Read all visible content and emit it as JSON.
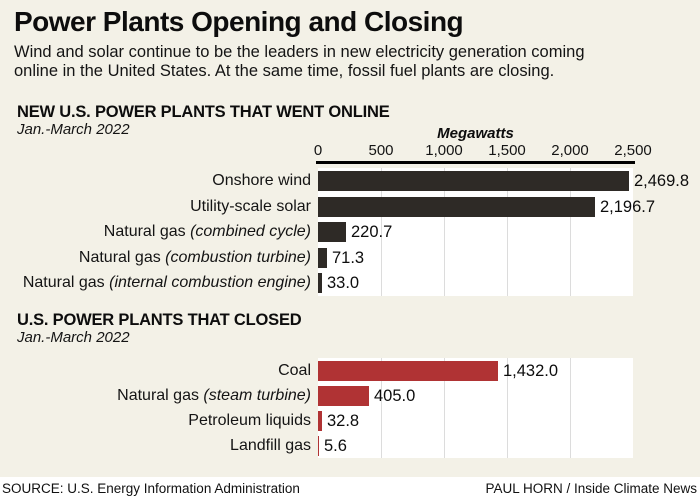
{
  "page": {
    "title": "Power Plants Opening and Closing",
    "subtitle": "Wind and solar continue to be the leaders in new electricity generation coming online in the United States. At the same time, fossil fuel plants are closing.",
    "source": "SOURCE: U.S. Energy Information Administration",
    "credit": "PAUL HORN / Inside Climate News"
  },
  "colors": {
    "background": "#f3f1e7",
    "plot_background": "#ffffff",
    "gridline": "#dcdcdc",
    "axis_line": "#000000",
    "opened_bar": "#2e2a26",
    "closed_bar": "#b03334",
    "footer_background": "#ffffff"
  },
  "chart_data": [
    {
      "type": "bar",
      "orientation": "horizontal",
      "section_title": "NEW U.S. POWER PLANTS THAT WENT ONLINE",
      "section_subtitle": "Jan.-March 2022",
      "axis_label": "Megawatts",
      "axis_ticks": [
        "0",
        "500",
        "1,000",
        "1,500",
        "2,000",
        "2,500"
      ],
      "xlim": [
        0,
        2500
      ],
      "grid": true,
      "bar_color": "#2e2a26",
      "rows": [
        {
          "label": "Onshore wind",
          "note": "",
          "value": 2469.8,
          "value_label": "2,469.8"
        },
        {
          "label": "Utility-scale solar",
          "note": "",
          "value": 2196.7,
          "value_label": "2,196.7"
        },
        {
          "label": "Natural gas",
          "note": "(combined cycle)",
          "value": 220.7,
          "value_label": "220.7"
        },
        {
          "label": "Natural gas",
          "note": "(combustion turbine)",
          "value": 71.3,
          "value_label": "71.3"
        },
        {
          "label": "Natural gas",
          "note": "(internal combustion engine)",
          "value": 33.0,
          "value_label": "33.0"
        }
      ]
    },
    {
      "type": "bar",
      "orientation": "horizontal",
      "section_title": "U.S. POWER PLANTS THAT CLOSED",
      "section_subtitle": "Jan.-March 2022",
      "axis_label": "",
      "axis_ticks": [],
      "xlim": [
        0,
        2500
      ],
      "grid": true,
      "bar_color": "#b03334",
      "rows": [
        {
          "label": "Coal",
          "note": "",
          "value": 1432.0,
          "value_label": "1,432.0"
        },
        {
          "label": "Natural gas",
          "note": "(steam turbine)",
          "value": 405.0,
          "value_label": "405.0"
        },
        {
          "label": "Petroleum liquids",
          "note": "",
          "value": 32.8,
          "value_label": "32.8"
        },
        {
          "label": "Landfill gas",
          "note": "",
          "value": 5.6,
          "value_label": "5.6"
        }
      ]
    }
  ]
}
